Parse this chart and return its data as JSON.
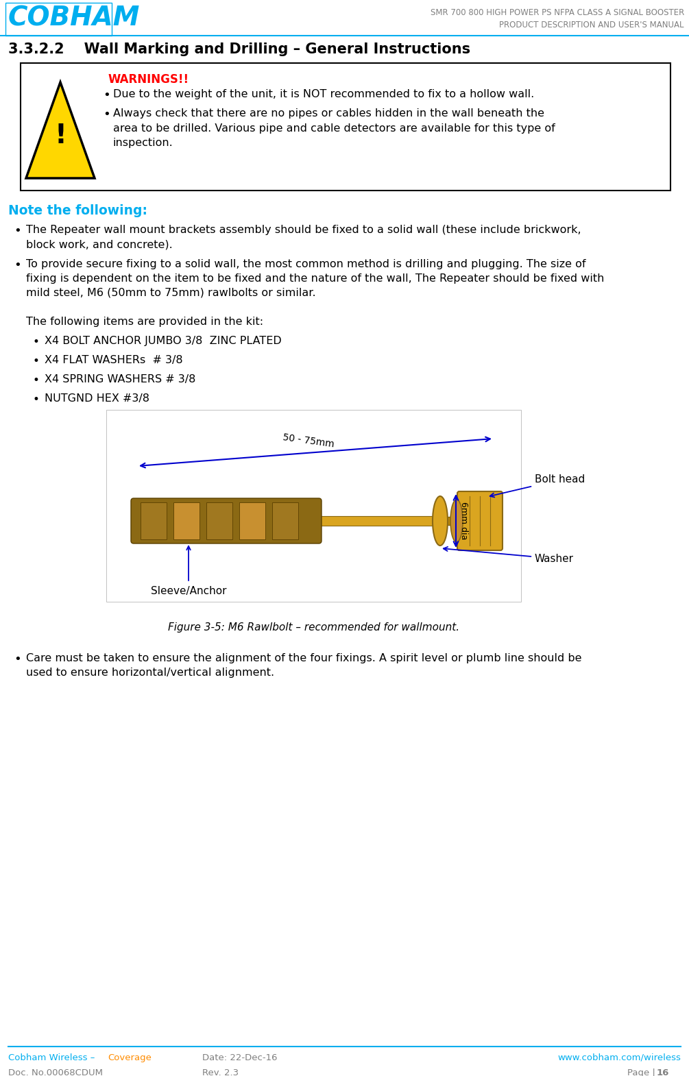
{
  "header_title1": "SMR 700 800 HIGH POWER PS NFPA CLASS A SIGNAL BOOSTER",
  "header_title2": "PRODUCT DESCRIPTION AND USER'S MANUAL",
  "logo_text": "COBHAM",
  "section_title": "3.3.2.2    Wall Marking and Drilling – General Instructions",
  "warning_title": "WARNINGS!!",
  "warning_bullet1": "Due to the weight of the unit, it is NOT recommended to fix to a hollow wall.",
  "warning_bullet2": "Always check that there are no pipes or cables hidden in the wall beneath the\narea to be drilled. Various pipe and cable detectors are available for this type of\ninspection.",
  "note_title": "Note the following:",
  "note_bullet1": "The Repeater wall mount brackets assembly should be fixed to a solid wall (these include brickwork,\nblock work, and concrete).",
  "note_bullet2": "To provide secure fixing to a solid wall, the most common method is drilling and plugging. The size of\nfixing is dependent on the item to be fixed and the nature of the wall, The Repeater should be fixed with\nmild steel, M6 (50mm to 75mm) rawlbolts or similar.",
  "kit_intro": "The following items are provided in the kit:",
  "kit_item1": "X4 BOLT ANCHOR JUMBO 3/8  ZINC PLATED",
  "kit_item2": "X4 FLAT WASHERs  # 3/8",
  "kit_item3": "X4 SPRING WASHERS # 3/8",
  "kit_item4": "NUTGND HEX #3/8",
  "figure_caption": "Figure 3-5: M6 Rawlbolt – recommended for wallmount.",
  "last_bullet": "Care must be taken to ensure the alignment of the four fixings. A spirit level or plumb line should be\nused to ensure horizontal/vertical alignment.",
  "footer_left_cyan": "Cobham Wireless – ",
  "footer_left_orange": "Coverage",
  "footer_left2": "Doc. No.00068CDUM",
  "footer_mid1": "Date: 22-Dec-16",
  "footer_mid2": "Rev. 2.3",
  "footer_right1": "www.cobham.com/wireless",
  "footer_page": "Page | ",
  "footer_pagenum": "16",
  "color_cyan": "#00AEEF",
  "color_red": "#FF0000",
  "color_gray": "#808080",
  "color_black": "#000000",
  "color_orange": "#FF8C00",
  "color_white": "#FFFFFF",
  "color_yellow": "#FFD700",
  "color_blue_arrow": "#0000CD",
  "bg_color": "#FFFFFF"
}
